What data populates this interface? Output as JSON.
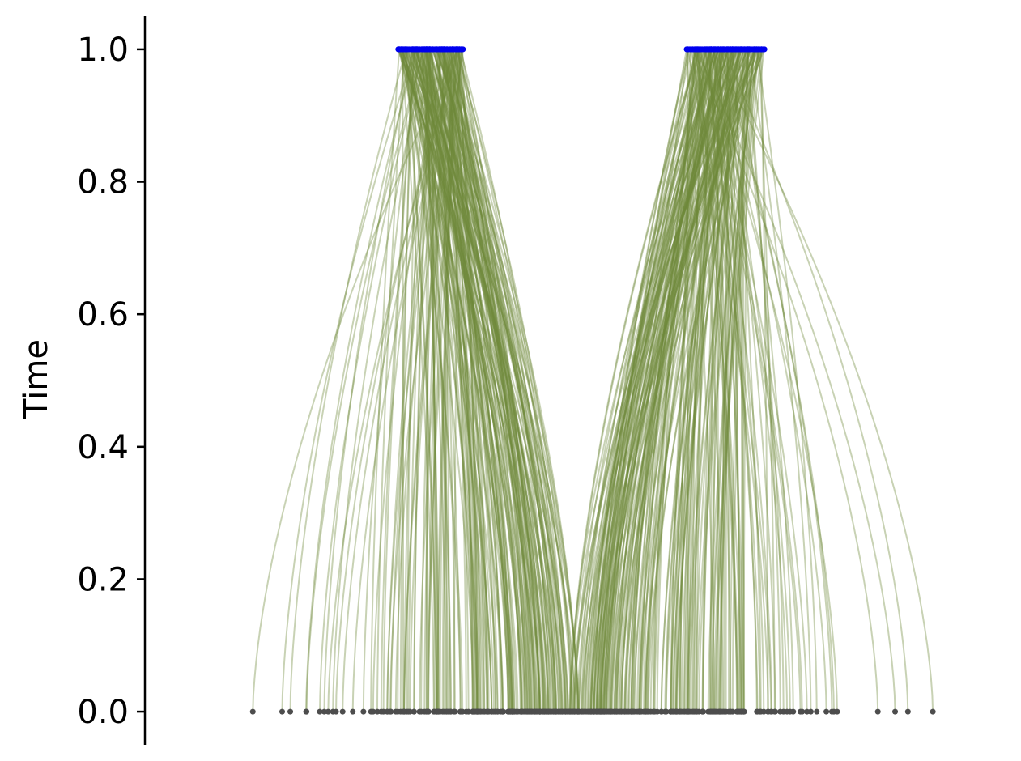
{
  "chart_data": {
    "type": "line",
    "ylabel": "Time",
    "xlabel": "",
    "title": "",
    "ylim": [
      -0.05,
      1.05
    ],
    "xlim": [
      -3.0,
      3.0
    ],
    "y_ticks": [
      "0.0",
      "0.2",
      "0.4",
      "0.6",
      "0.8",
      "1.0"
    ],
    "y_tick_values": [
      0.0,
      0.2,
      0.4,
      0.6,
      0.8,
      1.0
    ],
    "grid": false,
    "description_free": true,
    "series": [
      {
        "kind": "trajectories",
        "t_start": 0.0,
        "t_end": 1.0,
        "target_clusters": [
          {
            "center": -1.25,
            "range": [
              -1.35,
              -0.85
            ]
          },
          {
            "center": 1.25,
            "range": [
              0.85,
              1.45
            ]
          }
        ],
        "source_range": [
          -2.7,
          3.0
        ],
        "count": 420
      }
    ],
    "colors": {
      "trajectory": "#6f8a3a",
      "start_points": "#4d4d4d",
      "end_points": "#0000ee",
      "axis": "#000000"
    }
  }
}
